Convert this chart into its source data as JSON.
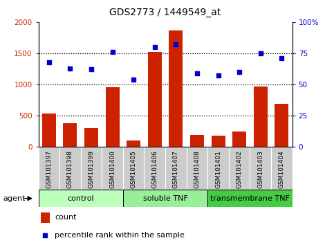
{
  "title": "GDS2773 / 1449549_at",
  "samples": [
    "GSM101397",
    "GSM101398",
    "GSM101399",
    "GSM101400",
    "GSM101405",
    "GSM101406",
    "GSM101407",
    "GSM101408",
    "GSM101401",
    "GSM101402",
    "GSM101403",
    "GSM101404"
  ],
  "counts": [
    540,
    380,
    300,
    960,
    100,
    1520,
    1860,
    195,
    180,
    245,
    970,
    690
  ],
  "percentile": [
    68,
    63,
    62,
    76,
    54,
    80,
    82,
    59,
    57,
    60,
    75,
    71
  ],
  "ylim_left": [
    0,
    2000
  ],
  "ylim_right": [
    0,
    100
  ],
  "yticks_left": [
    0,
    500,
    1000,
    1500,
    2000
  ],
  "yticks_right": [
    0,
    25,
    50,
    75,
    100
  ],
  "yticklabels_right": [
    "0",
    "25",
    "50",
    "75",
    "100%"
  ],
  "bar_color": "#cc2200",
  "dot_color": "#0000cc",
  "groups": [
    {
      "label": "control",
      "start": 0,
      "end": 4
    },
    {
      "label": "soluble TNF",
      "start": 4,
      "end": 8
    },
    {
      "label": "transmembrane TNF",
      "start": 8,
      "end": 12
    }
  ],
  "group_colors": [
    "#bbffbb",
    "#99ee99",
    "#44cc44"
  ],
  "agent_label": "agent",
  "legend_bar_label": "count",
  "legend_dot_label": "percentile rank within the sample",
  "tick_bg_color": "#cccccc",
  "plot_bg_color": "#ffffff",
  "grid_dotted_color": "#000000"
}
